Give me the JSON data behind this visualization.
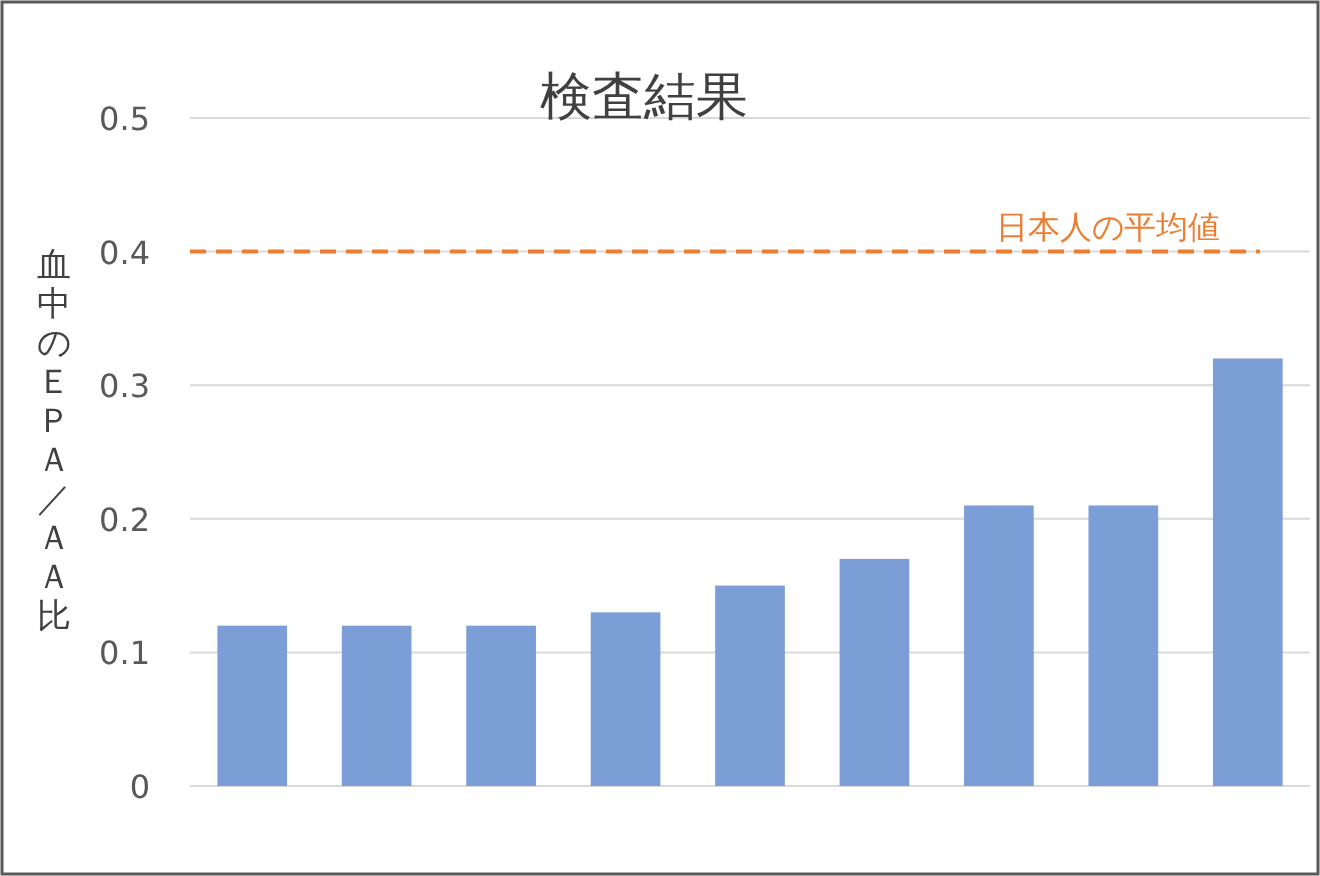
{
  "chart_data": {
    "type": "bar",
    "title": "検査結果",
    "ylabel": "血中のＥＰＡ／ＡＡ比",
    "categories": [
      null,
      null,
      null,
      null,
      null,
      null,
      null,
      null,
      null
    ],
    "values": [
      0.12,
      0.12,
      0.12,
      0.13,
      0.15,
      0.17,
      0.21,
      0.21,
      0.32
    ],
    "color": "#7b9ed6",
    "ylim": [
      0,
      0.5
    ],
    "yticks": [
      {
        "value": 0,
        "label": "0"
      },
      0.1,
      0.2,
      0.3,
      0.4,
      0.5
    ],
    "grid": "y",
    "ref_lines": [
      {
        "axis": "y",
        "value": 0.4,
        "label": "日本人の平均値",
        "color": "#ed7d31",
        "line_style": "dashed"
      }
    ]
  }
}
